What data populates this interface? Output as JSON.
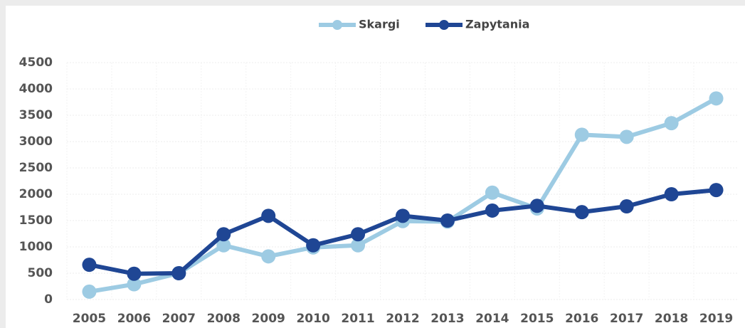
{
  "chart_data": {
    "type": "line",
    "categories": [
      "2005",
      "2006",
      "2007",
      "2008",
      "2009",
      "2010",
      "2011",
      "2012",
      "2013",
      "2014",
      "2015",
      "2016",
      "2017",
      "2018",
      "2019"
    ],
    "series": [
      {
        "name": "Skargi",
        "color": "#9dcbe3",
        "values": [
          150,
          290,
          500,
          1030,
          820,
          990,
          1030,
          1490,
          1480,
          2030,
          1730,
          3130,
          3090,
          3350,
          3820
        ]
      },
      {
        "name": "Zapytania",
        "color": "#1f4694",
        "values": [
          660,
          490,
          500,
          1240,
          1590,
          1030,
          1240,
          1590,
          1500,
          1690,
          1780,
          1660,
          1770,
          2000,
          2080
        ]
      }
    ],
    "ylim": [
      0,
      4500
    ],
    "yticks": [
      0,
      500,
      1000,
      1500,
      2000,
      2500,
      3000,
      3500,
      4000,
      4500
    ],
    "grid": true,
    "legend": "top"
  }
}
